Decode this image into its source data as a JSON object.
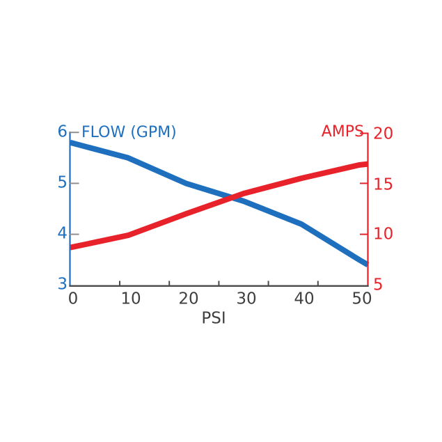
{
  "chart_data": {
    "type": "line",
    "title": "",
    "xlabel": "PSI",
    "x_tick_labels": [
      "0",
      "10",
      "20",
      "30",
      "40",
      "50"
    ],
    "x_ticks": [
      0,
      10,
      20,
      30,
      40,
      50
    ],
    "x": [
      0,
      10,
      20,
      30,
      40,
      50,
      51.5
    ],
    "series": [
      {
        "name": "FLOW (GPM)",
        "axis": "left",
        "color": "#1e70bf",
        "values": [
          5.8,
          5.5,
          5.0,
          4.65,
          4.2,
          3.5,
          3.4
        ]
      },
      {
        "name": "AMPS",
        "axis": "right",
        "color": "#e8222a",
        "values": [
          8.7,
          9.9,
          12.0,
          14.0,
          15.5,
          16.8,
          16.9
        ]
      }
    ],
    "left_axis": {
      "label": "FLOW (GPM)",
      "color": "#1e70bf",
      "range": [
        3,
        6
      ],
      "tick_labels": [
        "6",
        "5",
        "4",
        "3"
      ]
    },
    "right_axis": {
      "label": "AMPS",
      "color": "#e8222a",
      "range": [
        5,
        20
      ],
      "tick_labels": [
        "20",
        "15",
        "10",
        "5"
      ]
    },
    "grid": false,
    "legend_position": "axis-colored-titles-top"
  },
  "colors": {
    "flow_blue": "#1e70bf",
    "amps_red": "#e8222a",
    "x_text_dark": "#3f3f3f",
    "x_axis_line": "#4a4a4a",
    "left_tick_gray": "#8f8f8f",
    "background": "#ffffff"
  }
}
